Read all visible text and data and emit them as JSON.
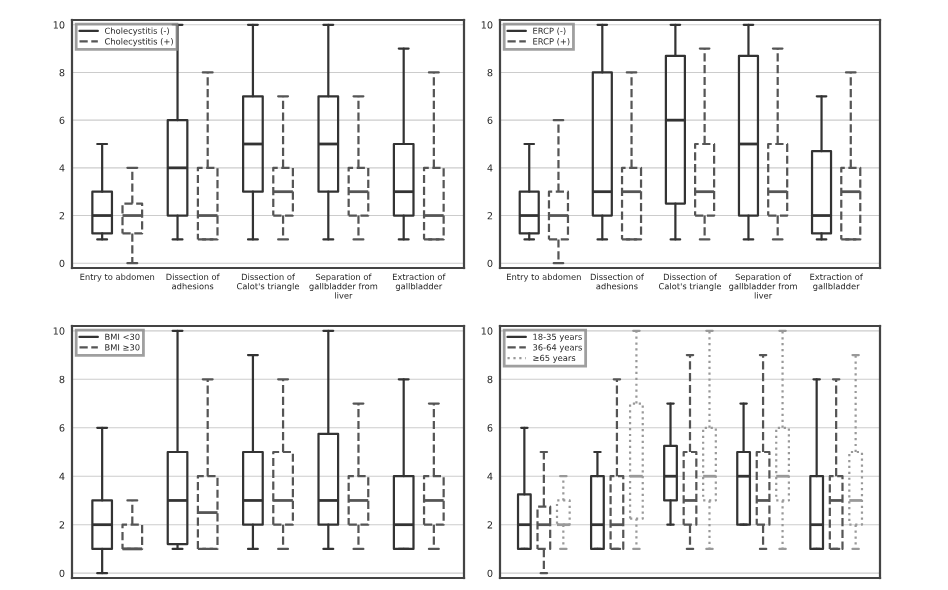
{
  "chart_data": [
    {
      "type": "box",
      "categories": [
        "Entry to abdomen",
        "Dissection of adhesions",
        "Dissection of Calot's triangle",
        "Separation of gallbladder from liver",
        "Extraction of gallbladder"
      ],
      "ylim": [
        -0.2,
        10.2
      ],
      "yticks": [
        0,
        2,
        4,
        6,
        8,
        10
      ],
      "grid": "y",
      "legend": "top left",
      "series": [
        {
          "name": "Cholecystitis (-)",
          "color": "#333333",
          "line_style": "solid",
          "boxes": [
            {
              "low": 1,
              "q1": 1.25,
              "median": 2,
              "q3": 3,
              "high": 5
            },
            {
              "low": 1,
              "q1": 2,
              "median": 4,
              "q3": 6,
              "high": 10
            },
            {
              "low": 1,
              "q1": 3,
              "median": 5,
              "q3": 7,
              "high": 10
            },
            {
              "low": 1,
              "q1": 3,
              "median": 5,
              "q3": 7,
              "high": 10
            },
            {
              "low": 1,
              "q1": 2,
              "median": 3,
              "q3": 5,
              "high": 9
            }
          ]
        },
        {
          "name": "Cholecystitis (+)",
          "color": "#555555",
          "line_style": "dashed",
          "boxes": [
            {
              "low": 0,
              "q1": 1.25,
              "median": 2,
              "q3": 2.5,
              "high": 4
            },
            {
              "low": 1,
              "q1": 1,
              "median": 2,
              "q3": 4,
              "high": 8
            },
            {
              "low": 1,
              "q1": 2,
              "median": 3,
              "q3": 4,
              "high": 7
            },
            {
              "low": 1,
              "q1": 2,
              "median": 3,
              "q3": 4,
              "high": 7
            },
            {
              "low": 1,
              "q1": 1,
              "median": 2,
              "q3": 4,
              "high": 8
            }
          ]
        }
      ]
    },
    {
      "type": "box",
      "categories": [
        "Entry to abdomen",
        "Dissection of adhesions",
        "Dissection of Calot's triangle",
        "Separation of gallbladder from liver",
        "Extraction of gallbladder"
      ],
      "ylim": [
        -0.2,
        10.2
      ],
      "yticks": [
        0,
        2,
        4,
        6,
        8,
        10
      ],
      "grid": "y",
      "legend": "top left",
      "series": [
        {
          "name": "ERCP (-)",
          "color": "#333333",
          "line_style": "solid",
          "boxes": [
            {
              "low": 1,
              "q1": 1.25,
              "median": 2,
              "q3": 3,
              "high": 5
            },
            {
              "low": 1,
              "q1": 2,
              "median": 3,
              "q3": 8,
              "high": 10
            },
            {
              "low": 1,
              "q1": 2.5,
              "median": 6,
              "q3": 8.7,
              "high": 10
            },
            {
              "low": 1,
              "q1": 2,
              "median": 5,
              "q3": 8.7,
              "high": 10
            },
            {
              "low": 1,
              "q1": 1.25,
              "median": 2,
              "q3": 4.7,
              "high": 7
            }
          ]
        },
        {
          "name": "ERCP (+)",
          "color": "#555555",
          "line_style": "dashed",
          "boxes": [
            {
              "low": 0,
              "q1": 1,
              "median": 2,
              "q3": 3,
              "high": 6
            },
            {
              "low": 1,
              "q1": 1,
              "median": 3,
              "q3": 4,
              "high": 8
            },
            {
              "low": 1,
              "q1": 2,
              "median": 3,
              "q3": 5,
              "high": 9
            },
            {
              "low": 1,
              "q1": 2,
              "median": 3,
              "q3": 5,
              "high": 9
            },
            {
              "low": 1,
              "q1": 1,
              "median": 3,
              "q3": 4,
              "high": 8
            }
          ]
        }
      ]
    },
    {
      "type": "box",
      "categories": [
        null,
        null,
        null,
        null,
        null
      ],
      "tick_labels": "y",
      "ylim": [
        -0.2,
        10.2
      ],
      "yticks": [
        0,
        2,
        4,
        6,
        8,
        10
      ],
      "grid": "y",
      "legend": "top left",
      "series": [
        {
          "name": "BMI <30",
          "color": "#333333",
          "line_style": "solid",
          "boxes": [
            {
              "low": 0,
              "q1": 1,
              "median": 2,
              "q3": 3,
              "high": 6
            },
            {
              "low": 1,
              "q1": 1.2,
              "median": 3,
              "q3": 5,
              "high": 10
            },
            {
              "low": 1,
              "q1": 2,
              "median": 3,
              "q3": 5,
              "high": 9
            },
            {
              "low": 1,
              "q1": 2,
              "median": 3,
              "q3": 5.75,
              "high": 10
            },
            {
              "low": 1,
              "q1": 1,
              "median": 2,
              "q3": 4,
              "high": 8
            }
          ]
        },
        {
          "name": "BMI ≥30",
          "color": "#555555",
          "line_style": "dashed",
          "boxes": [
            {
              "low": 1,
              "q1": 1,
              "median": 1,
              "q3": 2,
              "high": 3
            },
            {
              "low": 1,
              "q1": 1,
              "median": 2.5,
              "q3": 4,
              "high": 8
            },
            {
              "low": 1,
              "q1": 2,
              "median": 3,
              "q3": 5,
              "high": 8
            },
            {
              "low": 1,
              "q1": 2,
              "median": 3,
              "q3": 4,
              "high": 7
            },
            {
              "low": 1,
              "q1": 2,
              "median": 3,
              "q3": 4,
              "high": 7
            }
          ]
        }
      ]
    },
    {
      "type": "box",
      "categories": [
        null,
        null,
        null,
        null,
        null
      ],
      "tick_labels": "y",
      "ylim": [
        -0.2,
        10.2
      ],
      "yticks": [
        0,
        2,
        4,
        6,
        8,
        10
      ],
      "grid": "y",
      "legend": "top left",
      "series": [
        {
          "name": "18-35 years",
          "color": "#333333",
          "line_style": "solid",
          "boxes": [
            {
              "low": 1,
              "q1": 1,
              "median": 2,
              "q3": 3.25,
              "high": 6
            },
            {
              "low": 1,
              "q1": 1,
              "median": 2,
              "q3": 4,
              "high": 5
            },
            {
              "low": 2,
              "q1": 3,
              "median": 4,
              "q3": 5.25,
              "high": 7
            },
            {
              "low": 2,
              "q1": 2,
              "median": 4,
              "q3": 5,
              "high": 7
            },
            {
              "low": 1,
              "q1": 1,
              "median": 2,
              "q3": 4,
              "high": 8
            }
          ]
        },
        {
          "name": "36-64 years",
          "color": "#555555",
          "line_style": "dashed",
          "boxes": [
            {
              "low": 0,
              "q1": 1,
              "median": 2,
              "q3": 2.75,
              "high": 5
            },
            {
              "low": 1,
              "q1": 1,
              "median": 2,
              "q3": 4,
              "high": 8
            },
            {
              "low": 1,
              "q1": 2,
              "median": 3,
              "q3": 5,
              "high": 9
            },
            {
              "low": 1,
              "q1": 2,
              "median": 3,
              "q3": 5,
              "high": 9
            },
            {
              "low": 1,
              "q1": 1,
              "median": 3,
              "q3": 4,
              "high": 8
            }
          ]
        },
        {
          "name": "≥65 years",
          "color": "#999999",
          "line_style": "dotted",
          "boxes": [
            {
              "low": 1,
              "q1": 2,
              "median": 2,
              "q3": 3,
              "high": 4
            },
            {
              "low": 1,
              "q1": 2.25,
              "median": 4,
              "q3": 7,
              "high": 10
            },
            {
              "low": 1,
              "q1": 3,
              "median": 4,
              "q3": 6,
              "high": 10
            },
            {
              "low": 1,
              "q1": 3,
              "median": 4,
              "q3": 6,
              "high": 10
            },
            {
              "low": 1,
              "q1": 2,
              "median": 3,
              "q3": 5,
              "high": 9
            }
          ]
        }
      ]
    }
  ]
}
